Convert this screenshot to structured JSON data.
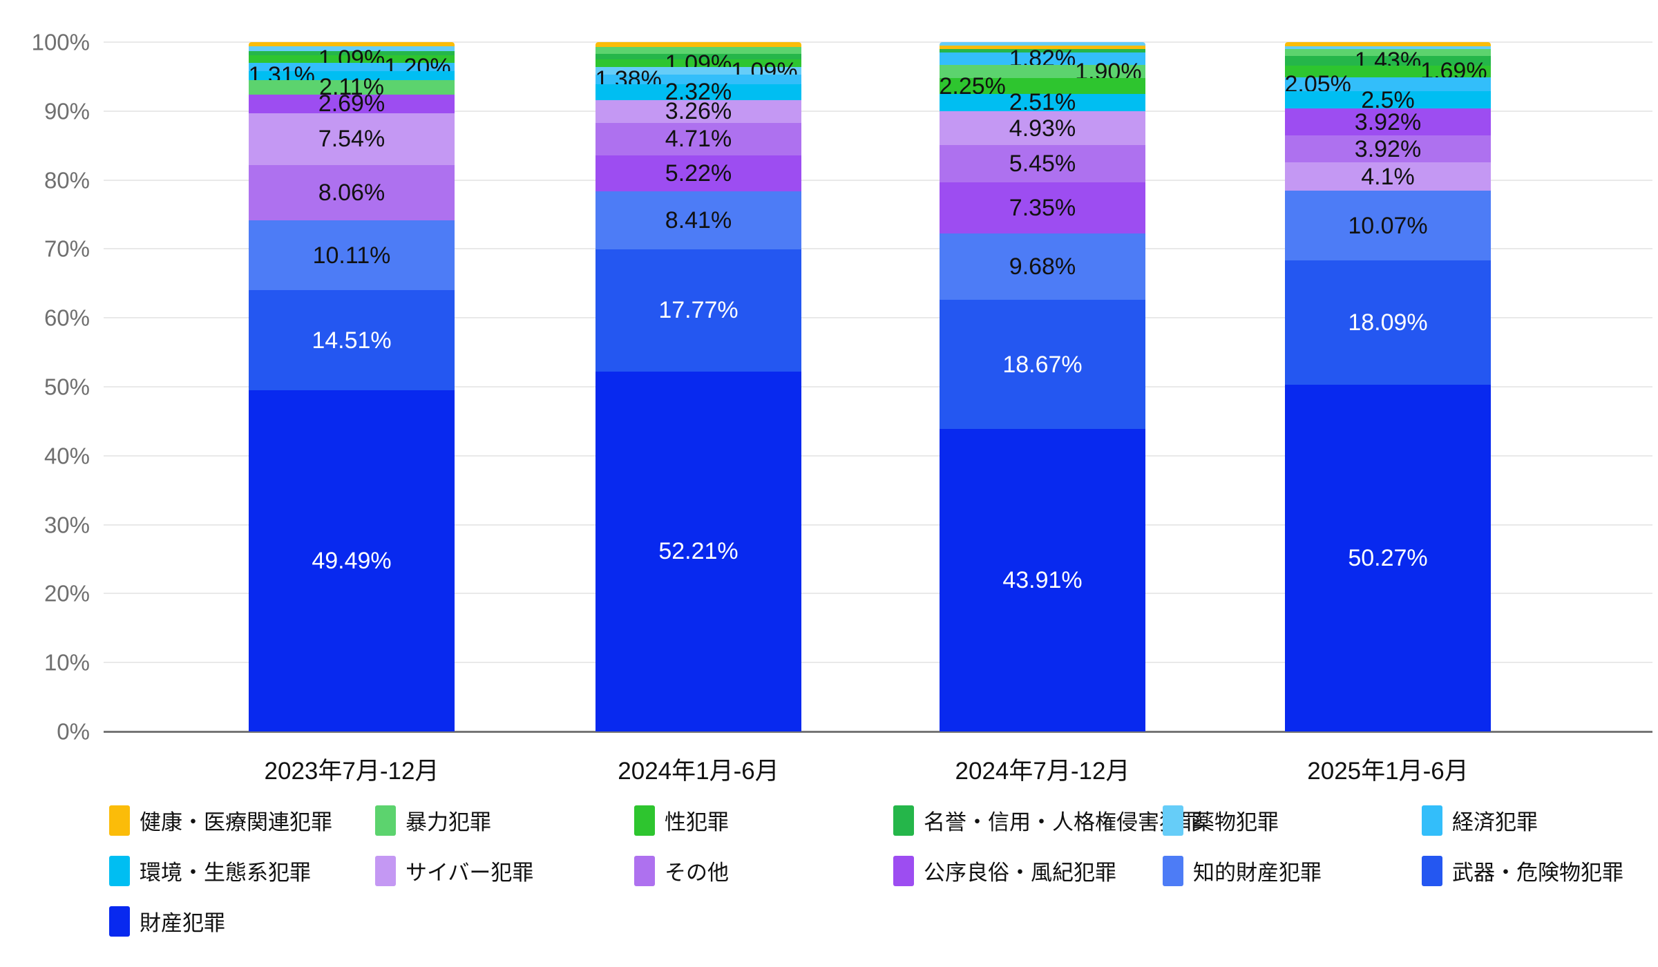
{
  "chart_data": {
    "type": "bar",
    "stacked": true,
    "percent_stacked": true,
    "title": "",
    "grid": "horizontal",
    "legend_position": "bottom",
    "categories": [
      "2023年7月-12月",
      "2024年1月-6月",
      "2024年7月-12月",
      "2025年1月-6月"
    ],
    "y_axis": {
      "min": 0,
      "max": 100,
      "step": 10,
      "ticks": [
        "0%",
        "10%",
        "20%",
        "30%",
        "40%",
        "50%",
        "60%",
        "70%",
        "80%",
        "90%",
        "100%"
      ]
    },
    "legend": [
      {
        "name": "健康・医療関連犯罪",
        "color": "#FBBC09"
      },
      {
        "name": "暴力犯罪",
        "color": "#5CD36E"
      },
      {
        "name": "性犯罪",
        "color": "#2EC52F"
      },
      {
        "name": "名誉・信用・人格権侵害犯罪",
        "color": "#25B64A"
      },
      {
        "name": "薬物犯罪",
        "color": "#66CDF8"
      },
      {
        "name": "経済犯罪",
        "color": "#33BEFA"
      },
      {
        "name": "環境・生態系犯罪",
        "color": "#00BEF2"
      },
      {
        "name": "サイバー犯罪",
        "color": "#C498F3"
      },
      {
        "name": "その他",
        "color": "#AE71EF"
      },
      {
        "name": "公序良俗・風紀犯罪",
        "color": "#9D4DF1"
      },
      {
        "name": "知的財産犯罪",
        "color": "#4D7CF6"
      },
      {
        "name": "武器・危険物犯罪",
        "color": "#2457F1"
      },
      {
        "name": "財産犯罪",
        "color": "#0829EF"
      }
    ],
    "bars": [
      {
        "category": "2023年7月-12月",
        "segments_top_to_bottom": [
          {
            "name": "健康・医療関連犯罪",
            "value": 0.6,
            "label": null
          },
          {
            "name": "薬物犯罪",
            "value": 0.74,
            "label": null
          },
          {
            "name": "名誉・信用・人格権侵害犯罪",
            "value": 0.55,
            "label": null
          },
          {
            "name": "性犯罪",
            "value": 1.09,
            "label": "1.09%",
            "label_pos": "center"
          },
          {
            "name": "経済犯罪",
            "value": 1.2,
            "label": "1.20%",
            "label_pos": "right"
          },
          {
            "name": "環境・生態系犯罪",
            "value": 1.31,
            "label": "1.31%",
            "label_pos": "left"
          },
          {
            "name": "暴力犯罪",
            "value": 2.11,
            "label": "2.11%",
            "label_pos": "center"
          },
          {
            "name": "公序良俗・風紀犯罪",
            "value": 2.69,
            "label": "2.69%",
            "label_pos": "center"
          },
          {
            "name": "サイバー犯罪",
            "value": 7.54,
            "label": "7.54%",
            "label_pos": "center"
          },
          {
            "name": "その他",
            "value": 8.06,
            "label": "8.06%",
            "label_pos": "center"
          },
          {
            "name": "知的財産犯罪",
            "value": 10.11,
            "label": "10.11%",
            "label_pos": "center"
          },
          {
            "name": "武器・危険物犯罪",
            "value": 14.51,
            "label": "14.51%",
            "label_pos": "center",
            "label_color": "#ffffff"
          },
          {
            "name": "財産犯罪",
            "value": 49.49,
            "label": "49.49%",
            "label_pos": "center",
            "label_color": "#ffffff"
          }
        ]
      },
      {
        "category": "2024年1月-6月",
        "segments_top_to_bottom": [
          {
            "name": "健康・医療関連犯罪",
            "value": 0.73,
            "label": null
          },
          {
            "name": "暴力犯罪",
            "value": 0.94,
            "label": null
          },
          {
            "name": "名誉・信用・人格権侵害犯罪",
            "value": 0.87,
            "label": null
          },
          {
            "name": "性犯罪",
            "value": 1.09,
            "label": "1.09%",
            "label_pos": "center"
          },
          {
            "name": "薬物犯罪",
            "value": 1.09,
            "label": "1.09%",
            "label_pos": "right"
          },
          {
            "name": "経済犯罪",
            "value": 1.38,
            "label": "1.38%",
            "label_pos": "left"
          },
          {
            "name": "環境・生態系犯罪",
            "value": 2.32,
            "label": "2.32%",
            "label_pos": "center"
          },
          {
            "name": "サイバー犯罪",
            "value": 3.26,
            "label": "3.26%",
            "label_pos": "center"
          },
          {
            "name": "その他",
            "value": 4.71,
            "label": "4.71%",
            "label_pos": "center"
          },
          {
            "name": "公序良俗・風紀犯罪",
            "value": 5.22,
            "label": "5.22%",
            "label_pos": "center"
          },
          {
            "name": "知的財産犯罪",
            "value": 8.41,
            "label": "8.41%",
            "label_pos": "center"
          },
          {
            "name": "武器・危険物犯罪",
            "value": 17.77,
            "label": "17.77%",
            "label_pos": "center",
            "label_color": "#ffffff"
          },
          {
            "name": "財産犯罪",
            "value": 52.21,
            "label": "52.21%",
            "label_pos": "center",
            "label_color": "#ffffff"
          }
        ]
      },
      {
        "category": "2024年7月-12月",
        "segments_top_to_bottom": [
          {
            "name": "薬物犯罪",
            "value": 0.48,
            "label": null
          },
          {
            "name": "健康・医療関連犯罪",
            "value": 0.52,
            "label": null
          },
          {
            "name": "名誉・信用・人格権侵害犯罪",
            "value": 0.53,
            "label": null
          },
          {
            "name": "経済犯罪",
            "value": 1.82,
            "label": "1.82%",
            "label_pos": "center"
          },
          {
            "name": "暴力犯罪",
            "value": 1.9,
            "label": "1.90%",
            "label_pos": "right"
          },
          {
            "name": "性犯罪",
            "value": 2.25,
            "label": "2.25%",
            "label_pos": "left"
          },
          {
            "name": "環境・生態系犯罪",
            "value": 2.51,
            "label": "2.51%",
            "label_pos": "center"
          },
          {
            "name": "サイバー犯罪",
            "value": 4.93,
            "label": "4.93%",
            "label_pos": "center"
          },
          {
            "name": "その他",
            "value": 5.45,
            "label": "5.45%",
            "label_pos": "center"
          },
          {
            "name": "公序良俗・風紀犯罪",
            "value": 7.35,
            "label": "7.35%",
            "label_pos": "center"
          },
          {
            "name": "知的財産犯罪",
            "value": 9.68,
            "label": "9.68%",
            "label_pos": "center"
          },
          {
            "name": "武器・危険物犯罪",
            "value": 18.67,
            "label": "18.67%",
            "label_pos": "center",
            "label_color": "#ffffff"
          },
          {
            "name": "財産犯罪",
            "value": 43.91,
            "label": "43.91%",
            "label_pos": "center",
            "label_color": "#ffffff"
          }
        ]
      },
      {
        "category": "2025年1月-6月",
        "segments_top_to_bottom": [
          {
            "name": "健康・医療関連犯罪",
            "value": 0.6,
            "label": null
          },
          {
            "name": "薬物犯罪",
            "value": 0.45,
            "label": null
          },
          {
            "name": "暴力犯罪",
            "value": 0.91,
            "label": null
          },
          {
            "name": "名誉・信用・人格権侵害犯罪",
            "value": 1.43,
            "label": "1.43%",
            "label_pos": "center"
          },
          {
            "name": "性犯罪",
            "value": 1.69,
            "label": "1.69%",
            "label_pos": "right"
          },
          {
            "name": "経済犯罪",
            "value": 2.05,
            "label": "2.05%",
            "label_pos": "left"
          },
          {
            "name": "環境・生態系犯罪",
            "value": 2.5,
            "label": "2.5%",
            "label_pos": "center"
          },
          {
            "name": "公序良俗・風紀犯罪",
            "value": 3.92,
            "label": "3.92%",
            "label_pos": "center"
          },
          {
            "name": "その他",
            "value": 3.92,
            "label": "3.92%",
            "label_pos": "center"
          },
          {
            "name": "サイバー犯罪",
            "value": 4.1,
            "label": "4.1%",
            "label_pos": "center"
          },
          {
            "name": "知的財産犯罪",
            "value": 10.07,
            "label": "10.07%",
            "label_pos": "center"
          },
          {
            "name": "武器・危険物犯罪",
            "value": 18.09,
            "label": "18.09%",
            "label_pos": "center",
            "label_color": "#ffffff"
          },
          {
            "name": "財産犯罪",
            "value": 50.27,
            "label": "50.27%",
            "label_pos": "center",
            "label_color": "#ffffff"
          }
        ]
      }
    ]
  }
}
